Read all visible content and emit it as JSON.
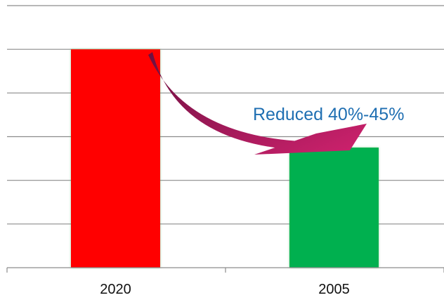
{
  "chart_data": {
    "type": "bar",
    "categories": [
      "2020",
      "2005"
    ],
    "values": [
      100,
      55
    ],
    "bar_colors": [
      "#ff0000",
      "#00b050"
    ],
    "ylim": [
      0,
      120
    ],
    "y_gridline_step": 20,
    "grid": true,
    "title": "",
    "xlabel": "",
    "ylabel": "",
    "annotation": {
      "text": "Reduced 40%-45%",
      "color": "#1f6fb2",
      "arrow_color": "#c0206a",
      "from_category": "2020",
      "to_category": "2005"
    }
  }
}
